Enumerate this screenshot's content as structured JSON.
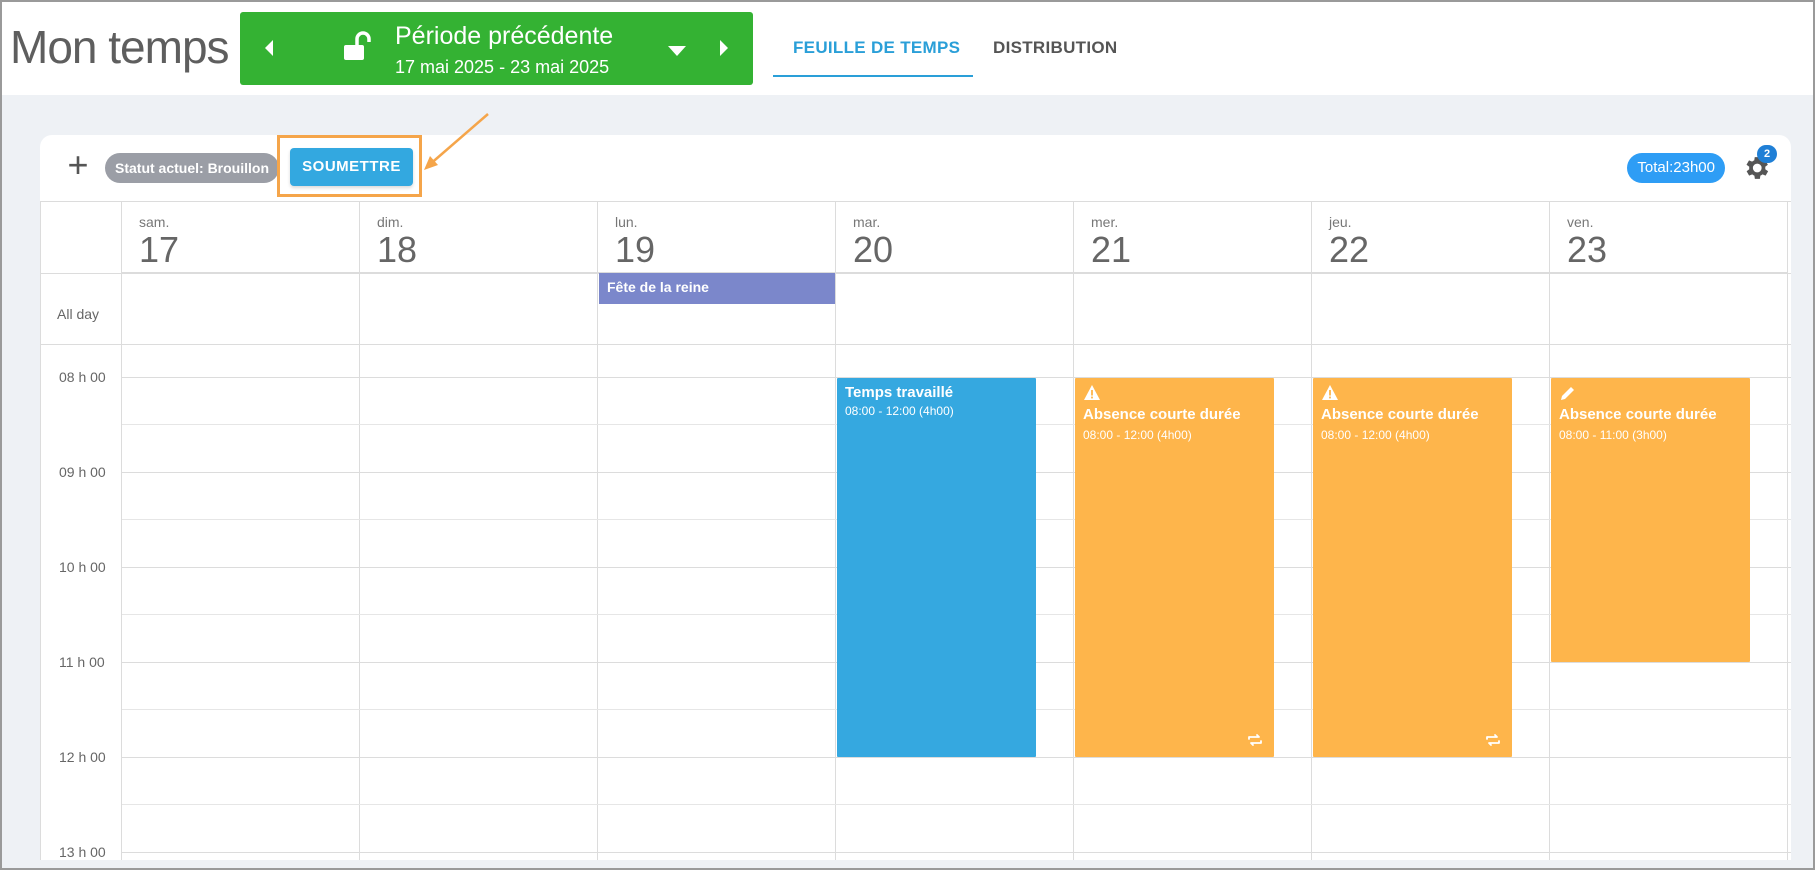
{
  "header": {
    "title": "Mon temps",
    "period": {
      "label": "Période précédente",
      "range": "17 mai 2025 - 23 mai 2025"
    },
    "tabs": [
      {
        "label": "FEUILLE DE TEMPS",
        "active": true
      },
      {
        "label": "DISTRIBUTION",
        "active": false
      }
    ]
  },
  "toolbar": {
    "add_label": "+",
    "status": "Statut actuel: Brouillon",
    "submit_label": "SOUMETTRE",
    "total": "Total:23h00",
    "settings_badge": "2"
  },
  "calendar": {
    "allday_label": "All day",
    "hours": [
      "08 h 00",
      "09 h 00",
      "10 h 00",
      "11 h 00",
      "12 h 00",
      "13 h 00"
    ],
    "days": [
      {
        "name": "sam.",
        "num": "17"
      },
      {
        "name": "dim.",
        "num": "18"
      },
      {
        "name": "lun.",
        "num": "19"
      },
      {
        "name": "mar.",
        "num": "20"
      },
      {
        "name": "mer.",
        "num": "21"
      },
      {
        "name": "jeu.",
        "num": "22"
      },
      {
        "name": "ven.",
        "num": "23"
      }
    ],
    "holiday": {
      "title": "Fête de la reine"
    },
    "events": [
      {
        "title": "Temps travaillé",
        "time": "08:00 - 12:00 (4h00)",
        "color": "#35a8e0"
      },
      {
        "title": "Absence courte durée",
        "time": "08:00 - 12:00 (4h00)",
        "color": "#feb54b",
        "icon": "warning-icon",
        "recurring": true
      },
      {
        "title": "Absence courte durée",
        "time": "08:00 - 12:00 (4h00)",
        "color": "#feb54b",
        "icon": "warning-icon",
        "recurring": true
      },
      {
        "title": "Absence courte durée",
        "time": "08:00 - 11:00 (3h00)",
        "color": "#feb54b",
        "icon": "pencil-icon",
        "recurring": false
      }
    ]
  },
  "colors": {
    "period_green": "#34b233",
    "accent_blue": "#2a9fd8",
    "highlight_orange": "#f5a54a",
    "holiday_purple": "#7b87cb"
  }
}
